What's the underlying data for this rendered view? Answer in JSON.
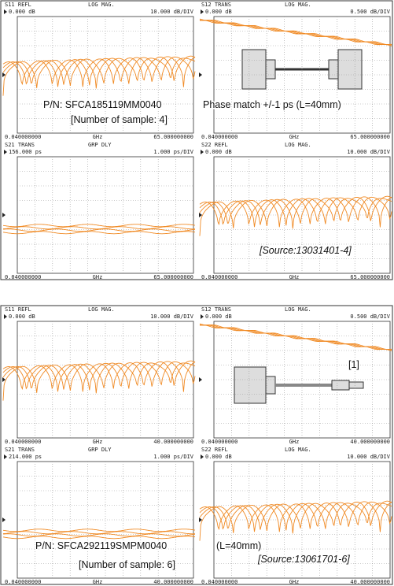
{
  "panels": [
    {
      "quadrants": [
        {
          "param": "S11 REFL",
          "format": "LOG MAG.",
          "ref": "0.000 dB",
          "scale": "10.000 dB/DIV",
          "start": "0.040000000",
          "unit": "GHz",
          "stop": "65.000000000"
        },
        {
          "param": "S12 TRANS",
          "format": "LOG MAG.",
          "ref": "0.000 dB",
          "scale": "0.500 dB/DIV",
          "start": "0.040000000",
          "unit": "GHz",
          "stop": "65.000000000"
        },
        {
          "param": "S21 TRANS",
          "format": "GRP DLY",
          "ref": "156.000 ps",
          "scale": "1.000 ps/DIV",
          "start": "0.040000000",
          "unit": "GHz",
          "stop": "65.000000000"
        },
        {
          "param": "S22 REFL",
          "format": "LOG MAG.",
          "ref": "0.000 dB",
          "scale": "10.000 dB/DIV",
          "start": "0.040000000",
          "unit": "GHz",
          "stop": "65.000000000"
        }
      ],
      "part_number": "P/N: SFCA185119MM0040",
      "note": "Phase match +/-1 ps (L=40mm)",
      "samples": "[Number of sample: 4]",
      "source": "[Source:13031401-4]"
    },
    {
      "quadrants": [
        {
          "param": "S11 REFL",
          "format": "LOG MAG.",
          "ref": "0.000 dB",
          "scale": "10.000 dB/DIV",
          "start": "0.040000000",
          "unit": "GHz",
          "stop": "40.000000000"
        },
        {
          "param": "S12 TRANS",
          "format": "LOG MAG.",
          "ref": "0.000 dB",
          "scale": "0.500 dB/DIV",
          "start": "0.040000000",
          "unit": "GHz",
          "stop": "40.000000000"
        },
        {
          "param": "S21 TRANS",
          "format": "GRP DLY",
          "ref": "214.000 ps",
          "scale": "1.000 ps/DIV",
          "start": "0.040000000",
          "unit": "GHz",
          "stop": "40.000000000"
        },
        {
          "param": "S22 REFL",
          "format": "LOG MAG.",
          "ref": "0.000 dB",
          "scale": "10.000 dB/DIV",
          "start": "0.040000000",
          "unit": "GHz",
          "stop": "40.000000000"
        }
      ],
      "part_number": "P/N: SFCA292119SMPM0040",
      "note": "(L=40mm)",
      "samples": "[Number of sample: 6]",
      "source": "[Source:13061701-6]",
      "figure_ref": "[1]"
    }
  ]
}
